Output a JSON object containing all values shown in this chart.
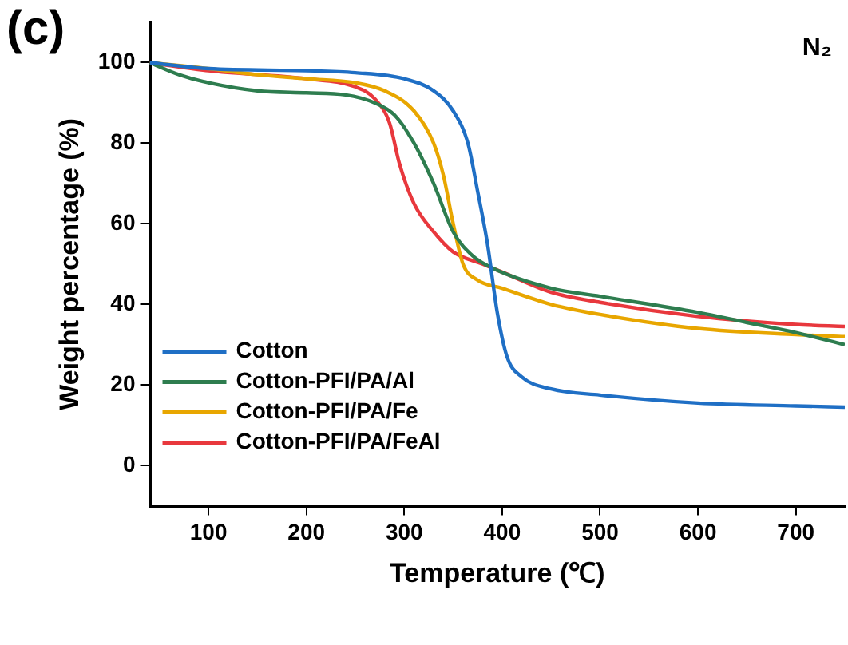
{
  "chart_data": {
    "type": "line",
    "xlabel": "Temperature (℃)",
    "ylabel": "Weight percentage (%)",
    "annotations": [
      "(c)",
      "N₂"
    ],
    "xlim": [
      40,
      750
    ],
    "xticks": [
      100,
      200,
      300,
      400,
      500,
      600,
      700
    ],
    "ylim": [
      -10,
      110
    ],
    "yticks": [
      0,
      20,
      40,
      60,
      80,
      100
    ],
    "grid": false,
    "legend": "bottom left",
    "marker": "none",
    "line_style": "solid",
    "series": [
      {
        "name": "Cotton",
        "color": "#1f6fc5",
        "x": [
          40,
          100,
          200,
          250,
          300,
          330,
          350,
          365,
          375,
          385,
          395,
          405,
          420,
          450,
          500,
          600,
          700,
          750
        ],
        "values": [
          100,
          98.5,
          98,
          97.5,
          96,
          93,
          88,
          80,
          68,
          55,
          38,
          27,
          22,
          19,
          17.5,
          15.5,
          14.8,
          14.5
        ]
      },
      {
        "name": "Cotton-PFI/PA/Al",
        "color": "#2e7d4f",
        "x": [
          40,
          70,
          100,
          150,
          200,
          240,
          270,
          290,
          310,
          330,
          350,
          370,
          390,
          450,
          500,
          600,
          650,
          700,
          750
        ],
        "values": [
          100,
          97,
          95,
          93,
          92.5,
          92,
          90,
          87,
          80,
          70,
          58,
          52,
          49,
          44,
          42,
          38,
          35.5,
          33,
          30
        ]
      },
      {
        "name": "Cotton-PFI/PA/Fe",
        "color": "#e8a600",
        "x": [
          40,
          100,
          150,
          200,
          250,
          280,
          310,
          330,
          340,
          350,
          360,
          375,
          400,
          450,
          500,
          600,
          700,
          750
        ],
        "values": [
          100,
          98.5,
          97,
          96,
          95,
          93,
          88,
          80,
          72,
          60,
          50,
          46,
          44,
          40,
          37.5,
          34,
          32.5,
          32
        ]
      },
      {
        "name": "Cotton-PFI/PA/FeAl",
        "color": "#e8383d",
        "x": [
          40,
          100,
          200,
          250,
          270,
          285,
          295,
          310,
          330,
          350,
          380,
          400,
          450,
          500,
          600,
          700,
          750
        ],
        "values": [
          100,
          98,
          96,
          94,
          91,
          85,
          75,
          65,
          58,
          53,
          50,
          48,
          43,
          40.5,
          37,
          35,
          34.5
        ]
      }
    ]
  }
}
